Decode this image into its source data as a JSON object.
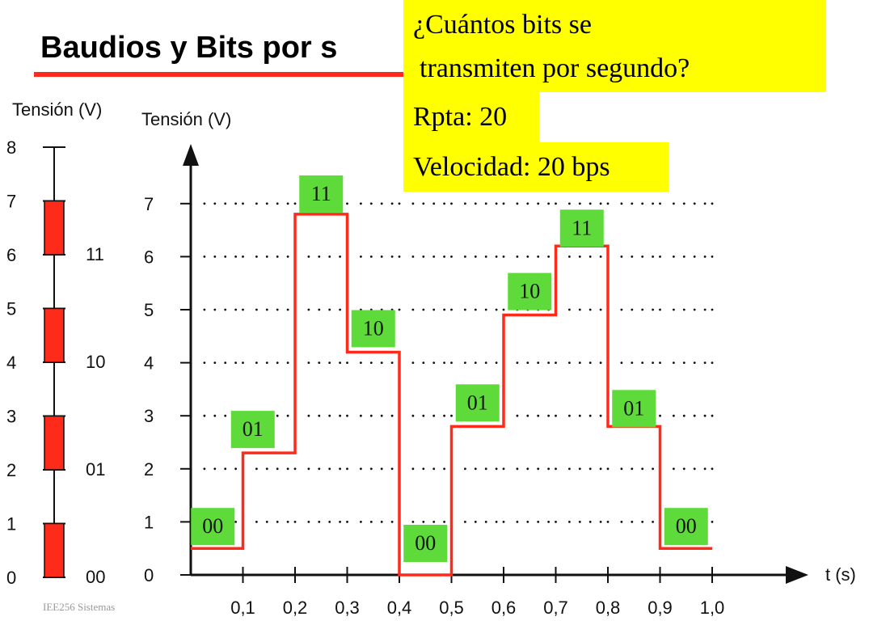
{
  "slide": {
    "title": "Baudios y Bits por s",
    "footer": "IEE256 Sistemas"
  },
  "callout": {
    "question_line1": "¿Cuántos bits se",
    "question_line2": "transmiten por segundo?",
    "answer": "Rpta: 20",
    "speed": "Velocidad: 20 bps"
  },
  "colors": {
    "signal": "#ff2b1a",
    "label_box": "#5edb3a",
    "callout_bg": "#ffff00",
    "title_rule": "#ff2b1a"
  },
  "chart_data": [
    {
      "type": "bar",
      "ylabel": "Tensión (V)",
      "yticks": [
        0,
        1,
        2,
        3,
        4,
        5,
        6,
        7,
        8
      ],
      "ylim": [
        0,
        8
      ],
      "levels": [
        {
          "label": "00",
          "range": [
            0,
            1
          ]
        },
        {
          "label": "01",
          "range": [
            2,
            3
          ]
        },
        {
          "label": "10",
          "range": [
            4,
            5
          ]
        },
        {
          "label": "11",
          "range": [
            6,
            7
          ]
        }
      ]
    },
    {
      "type": "line",
      "ylabel": "Tensión (V)",
      "xlabel": "t (s)",
      "xticks": [
        "0,1",
        "0,2",
        "0,3",
        "0,4",
        "0,5",
        "0,6",
        "0,7",
        "0,8",
        "0,9",
        "1,0"
      ],
      "yticks": [
        0,
        1,
        2,
        3,
        4,
        5,
        6,
        7
      ],
      "xlim": [
        0,
        1.0
      ],
      "ylim": [
        0,
        7
      ],
      "grid": "dotted",
      "segments": [
        {
          "x0": 0.0,
          "x1": 0.1,
          "y": 0.5,
          "bits": "00"
        },
        {
          "x0": 0.1,
          "x1": 0.2,
          "y": 2.3,
          "bits": "01"
        },
        {
          "x0": 0.2,
          "x1": 0.3,
          "y": 6.8,
          "bits": "11"
        },
        {
          "x0": 0.3,
          "x1": 0.4,
          "y": 4.2,
          "bits": "10"
        },
        {
          "x0": 0.4,
          "x1": 0.5,
          "y": 0.0,
          "bits": "00"
        },
        {
          "x0": 0.5,
          "x1": 0.6,
          "y": 2.8,
          "bits": "01"
        },
        {
          "x0": 0.6,
          "x1": 0.7,
          "y": 4.9,
          "bits": "10"
        },
        {
          "x0": 0.7,
          "x1": 0.8,
          "y": 6.2,
          "bits": "11"
        },
        {
          "x0": 0.8,
          "x1": 0.9,
          "y": 2.8,
          "bits": "01"
        },
        {
          "x0": 0.9,
          "x1": 1.0,
          "y": 0.5,
          "bits": "00"
        }
      ]
    }
  ]
}
